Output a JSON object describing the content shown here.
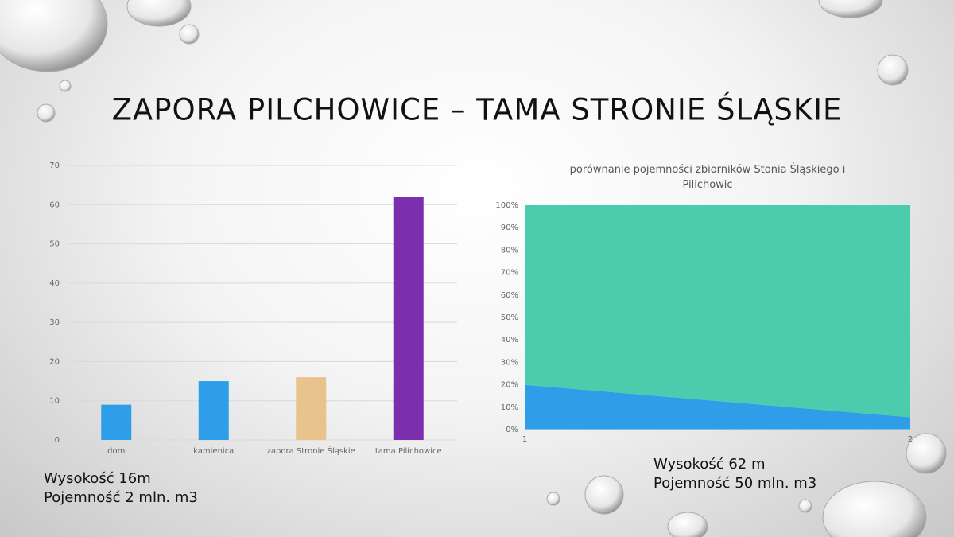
{
  "title": "ZAPORA PILCHOWICE – TAMA STRONIE ŚLĄSKIE",
  "chart_data": [
    {
      "type": "bar",
      "categories": [
        "dom",
        "kamienica",
        "zapora Stronie Śląskie",
        "tama Pilichowice"
      ],
      "values": [
        9,
        15,
        16,
        62
      ],
      "colors": [
        "#2e9ee8",
        "#2e9ee8",
        "#e8c48c",
        "#7b2fad"
      ],
      "ylim": [
        0,
        70
      ],
      "yticks": [
        0,
        10,
        20,
        30,
        40,
        50,
        60,
        70
      ],
      "grid": true
    },
    {
      "type": "area",
      "stacked": true,
      "title": "porównanie pojemności zbiorników Stonia Śląskiego i Pilichowic",
      "x": [
        1,
        2
      ],
      "xlim": [
        1,
        2
      ],
      "xticks": [
        1,
        2
      ],
      "series": [
        {
          "color": "#2e9ee8",
          "values": [
            20,
            5.5
          ]
        },
        {
          "color": "#4ccbad",
          "values": [
            80,
            94.5
          ]
        }
      ],
      "ylim": [
        0,
        100
      ],
      "yticks": [
        {
          "value": 0,
          "label": "0%"
        },
        {
          "value": 10,
          "label": "10%"
        },
        {
          "value": 20,
          "label": "20%"
        },
        {
          "value": 30,
          "label": "30%"
        },
        {
          "value": 40,
          "label": "40%"
        },
        {
          "value": 50,
          "label": "50%"
        },
        {
          "value": 60,
          "label": "60%"
        },
        {
          "value": 70,
          "label": "70%"
        },
        {
          "value": 80,
          "label": "80%"
        },
        {
          "value": 90,
          "label": "90%"
        },
        {
          "value": 100,
          "label": "100%"
        }
      ],
      "grid": false
    }
  ],
  "notes": [
    {
      "lines": [
        "Wysokość 16m",
        "Pojemność 2 mln. m3"
      ]
    },
    {
      "lines": [
        "Wysokość 62 m",
        "Pojemność 50 mln. m3"
      ]
    }
  ]
}
